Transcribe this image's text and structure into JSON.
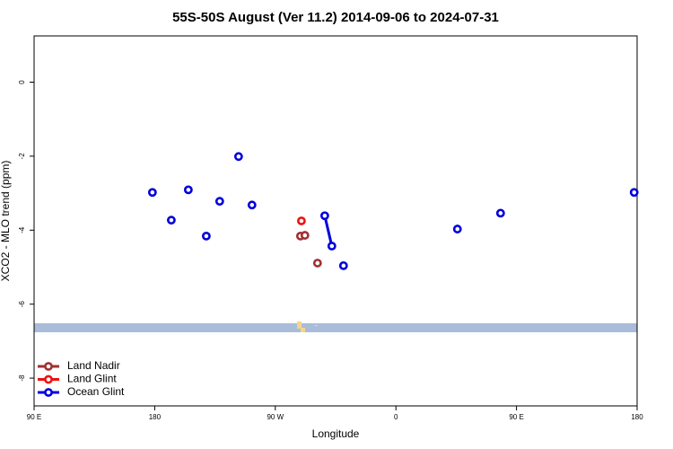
{
  "chart_data": {
    "type": "line",
    "title": "55S-50S August (Ver 11.2)   2014-09-06 to 2024-07-31",
    "x_label": "Longitude",
    "y_label": "XCO2 - MLO trend (ppm)",
    "xlim": [
      90,
      540
    ],
    "xticks": [
      {
        "value": 90,
        "label": "90 E"
      },
      {
        "value": 180,
        "label": "180"
      },
      {
        "value": 270,
        "label": "90 W"
      },
      {
        "value": 360,
        "label": "0"
      },
      {
        "value": 450,
        "label": "90 E"
      },
      {
        "value": 540,
        "label": "180"
      }
    ],
    "ylim": [
      -8.75,
      1.25
    ],
    "yticks": [
      0,
      -2,
      -4,
      -6,
      -8
    ],
    "legend": "bottom-left",
    "series": [
      {
        "name": "Land Nadir",
        "color": "#a03030",
        "x": [
          288.8,
          292.1,
          null,
          301.5
        ],
        "values": [
          -4.16,
          -4.14,
          null,
          -4.89
        ]
      },
      {
        "name": "Land Glint",
        "color": "#ee1111",
        "x": [
          289.5
        ],
        "values": [
          -3.75
        ]
      },
      {
        "name": "Ocean Glint",
        "color": "#0000dd",
        "x": [
          178.3,
          null,
          192.4,
          null,
          205.1,
          null,
          218.5,
          null,
          228.5,
          null,
          242.6,
          null,
          252.6,
          null,
          306.9,
          312.2,
          null,
          320.9,
          null,
          405.9,
          null,
          438.1,
          null,
          537.8
        ],
        "values": [
          -2.98,
          null,
          -3.73,
          null,
          -2.91,
          null,
          -4.16,
          null,
          -3.22,
          null,
          -2.01,
          null,
          -3.32,
          null,
          -3.61,
          -4.43,
          null,
          -4.96,
          null,
          -3.97,
          null,
          -3.54,
          null,
          -2.98
        ]
      }
    ]
  }
}
